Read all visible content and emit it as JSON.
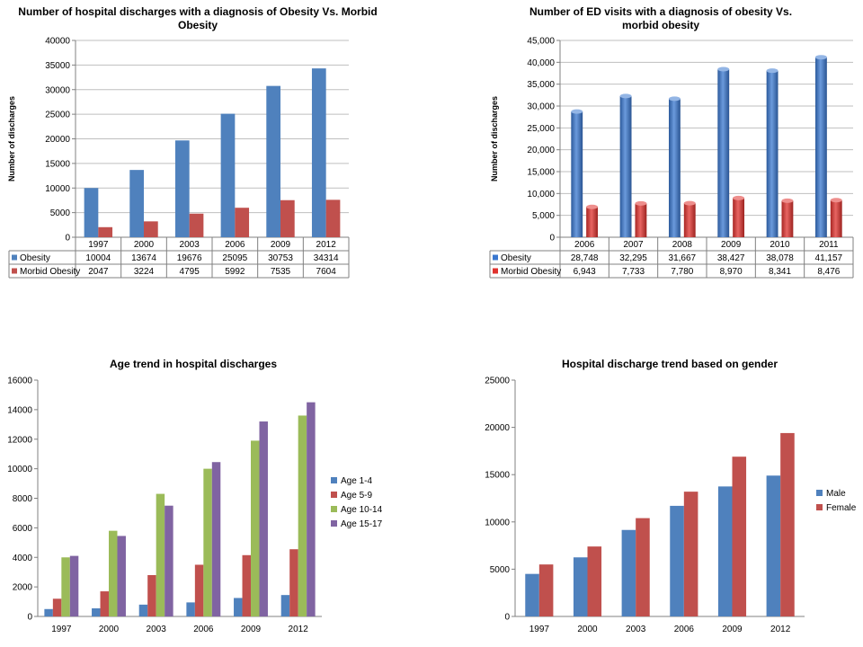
{
  "chart_data": [
    {
      "type": "bar",
      "title": "Number of hospital discharges with a diagnosis of Obesity Vs. Morbid Obesity",
      "ylabel": "Number of discharges",
      "categories": [
        "1997",
        "2000",
        "2003",
        "2006",
        "2009",
        "2012"
      ],
      "ylim": [
        0,
        40000
      ],
      "yticks": [
        "0",
        "5000",
        "10000",
        "15000",
        "20000",
        "25000",
        "30000",
        "35000",
        "40000"
      ],
      "grid": true,
      "legend": "data-table",
      "series": [
        {
          "name": "Obesity",
          "values": [
            10004,
            13674,
            19676,
            25095,
            30753,
            34314
          ],
          "labels": [
            "10004",
            "13674",
            "19676",
            "25095",
            "30753",
            "34314"
          ],
          "color": "#4F81BD"
        },
        {
          "name": "Morbid Obesity",
          "values": [
            2047,
            3224,
            4795,
            5992,
            7535,
            7604
          ],
          "labels": [
            "2047",
            "3224",
            "4795",
            "5992",
            "7535",
            "7604"
          ],
          "color": "#C0504D"
        }
      ]
    },
    {
      "type": "bar",
      "title": "Number of ED visits with a diagnosis of obesity Vs. morbid obesity",
      "ylabel": "Number of discharges",
      "categories": [
        "2006",
        "2007",
        "2008",
        "2009",
        "2010",
        "2011"
      ],
      "ylim": [
        0,
        45000
      ],
      "yticks": [
        "0",
        "5,000",
        "10,000",
        "15,000",
        "20,000",
        "25,000",
        "30,000",
        "35,000",
        "40,000",
        "45,000"
      ],
      "grid": true,
      "legend": "data-table",
      "series": [
        {
          "name": "Obesity",
          "values": [
            28748,
            32295,
            31667,
            38427,
            38078,
            41157
          ],
          "labels": [
            "28,748",
            "32,295",
            "31,667",
            "38,427",
            "38,078",
            "41,157"
          ],
          "color": "#3A78D0"
        },
        {
          "name": "Morbid Obesity",
          "values": [
            6943,
            7733,
            7780,
            8970,
            8341,
            8476
          ],
          "labels": [
            "6,943",
            "7,733",
            "7,780",
            "8,970",
            "8,341",
            "8,476"
          ],
          "color": "#E0322E"
        }
      ]
    },
    {
      "type": "bar",
      "title": "Age trend in hospital discharges",
      "categories": [
        "1997",
        "2000",
        "2003",
        "2006",
        "2009",
        "2012"
      ],
      "ylim": [
        0,
        16000
      ],
      "yticks": [
        "0",
        "2000",
        "4000",
        "6000",
        "8000",
        "10000",
        "12000",
        "14000",
        "16000"
      ],
      "grid": false,
      "legend": "right",
      "series": [
        {
          "name": "Age 1-4",
          "values": [
            500,
            550,
            800,
            950,
            1250,
            1450
          ],
          "color": "#4F81BD"
        },
        {
          "name": "Age 5-9",
          "values": [
            1200,
            1700,
            2800,
            3500,
            4150,
            4550
          ],
          "color": "#C0504D"
        },
        {
          "name": "Age 10-14",
          "values": [
            4000,
            5800,
            8300,
            10000,
            11900,
            13600
          ],
          "color": "#9BBB59"
        },
        {
          "name": "Age 15-17",
          "values": [
            4100,
            5450,
            7500,
            10450,
            13200,
            14500
          ],
          "color": "#8064A2"
        }
      ]
    },
    {
      "type": "bar",
      "title": "Hospital discharge trend based on gender",
      "categories": [
        "1997",
        "2000",
        "2003",
        "2006",
        "2009",
        "2012"
      ],
      "ylim": [
        0,
        25000
      ],
      "yticks": [
        "0",
        "5000",
        "10000",
        "15000",
        "20000",
        "25000"
      ],
      "grid": false,
      "legend": "right",
      "series": [
        {
          "name": "Male",
          "values": [
            4500,
            6250,
            9150,
            11700,
            13750,
            14900
          ],
          "color": "#4F81BD"
        },
        {
          "name": "Female",
          "values": [
            5500,
            7400,
            10400,
            13200,
            16900,
            19400
          ],
          "color": "#C0504D"
        }
      ]
    }
  ]
}
